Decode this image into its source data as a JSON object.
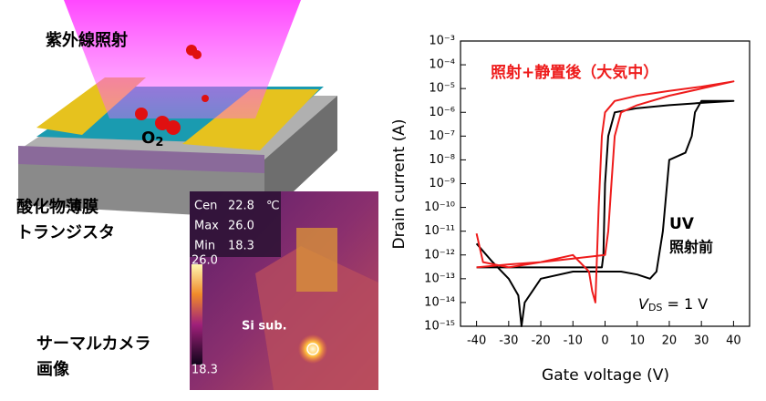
{
  "illustration": {
    "uv_label": "紫外線照射",
    "o2": {
      "symbol": "O",
      "subscript": "2"
    },
    "device_label": [
      "酸化物薄膜",
      "トランジスタ"
    ],
    "camera_label": [
      "サーマルカメラ",
      "画像"
    ]
  },
  "thermal": {
    "rows": [
      [
        "Cen",
        "22.8"
      ],
      [
        "Max",
        "26.0"
      ],
      [
        "Min",
        "18.3"
      ]
    ],
    "unit": "℃",
    "scale_top": "26.0",
    "scale_bottom": "18.3",
    "sample_label": "Si sub."
  },
  "chart_data": {
    "type": "line",
    "xlabel": "Gate voltage (V)",
    "ylabel": "Drain current (A)",
    "log_y": true,
    "xlim": [
      -45,
      45
    ],
    "xticks": [
      -40,
      -30,
      -20,
      -10,
      0,
      10,
      20,
      30,
      40
    ],
    "ylim": [
      1e-15,
      0.001
    ],
    "yticks": [
      {
        "value": 1e-15,
        "label": "10⁻¹⁵"
      },
      {
        "value": 1e-14,
        "label": "10⁻¹⁴"
      },
      {
        "value": 1e-13,
        "label": "10⁻¹³"
      },
      {
        "value": 1e-12,
        "label": "10⁻¹²"
      },
      {
        "value": 1e-11,
        "label": "10⁻¹¹"
      },
      {
        "value": 1e-10,
        "label": "10⁻¹⁰"
      },
      {
        "value": 1e-09,
        "label": "10⁻⁹"
      },
      {
        "value": 1e-08,
        "label": "10⁻⁸"
      },
      {
        "value": 1e-07,
        "label": "10⁻⁷"
      },
      {
        "value": 1e-06,
        "label": "10⁻⁶"
      },
      {
        "value": 1e-05,
        "label": "10⁻⁵"
      },
      {
        "value": 0.0001,
        "label": "10⁻⁴"
      },
      {
        "value": 0.001,
        "label": "10⁻³"
      }
    ],
    "series": [
      {
        "color": "#000000",
        "x": [
          -40,
          -35,
          -30,
          -27,
          -26,
          -25,
          -20,
          -10,
          0,
          5,
          10,
          14,
          16,
          18,
          20,
          25,
          27,
          28,
          30,
          40,
          30,
          20,
          10,
          3,
          1,
          0,
          -0.5,
          -1,
          -10,
          -20,
          -30,
          -40
        ],
        "values": [
          3e-12,
          5e-13,
          1e-13,
          2e-14,
          1e-15,
          1e-14,
          1e-13,
          2e-13,
          2e-13,
          2e-13,
          1.5e-13,
          1e-13,
          2e-13,
          1e-11,
          1e-08,
          2e-08,
          1e-07,
          1e-06,
          3e-06,
          3e-06,
          2.5e-06,
          2e-06,
          1.5e-06,
          1e-06,
          1e-07,
          1e-09,
          1e-12,
          3e-13,
          3e-13,
          3e-13,
          3e-13,
          3e-13
        ]
      },
      {
        "color": "#ee1c1c",
        "x": [
          -40,
          -38,
          -30,
          -20,
          -10,
          -5,
          -4,
          -3,
          -2,
          -1,
          0,
          3,
          10,
          20,
          30,
          40,
          30,
          20,
          10,
          5,
          3,
          2,
          1,
          0,
          -10,
          -20,
          -30,
          -40
        ],
        "values": [
          8e-12,
          5e-13,
          3e-13,
          5e-13,
          1e-12,
          2e-13,
          3e-14,
          1e-14,
          1e-10,
          1e-07,
          1e-06,
          3e-06,
          5e-06,
          8e-06,
          1.2e-05,
          2e-05,
          1e-05,
          5e-06,
          2e-06,
          1e-06,
          1e-07,
          1e-09,
          1e-11,
          1e-12,
          7e-13,
          5e-13,
          4e-13,
          3e-13
        ]
      }
    ],
    "annotations": {
      "after": "照射+静置後（大気中）",
      "uv": "UV",
      "before": "照射前",
      "vds": {
        "symbol": "V",
        "subscript": "DS",
        "rest": " = 1 V"
      }
    }
  }
}
